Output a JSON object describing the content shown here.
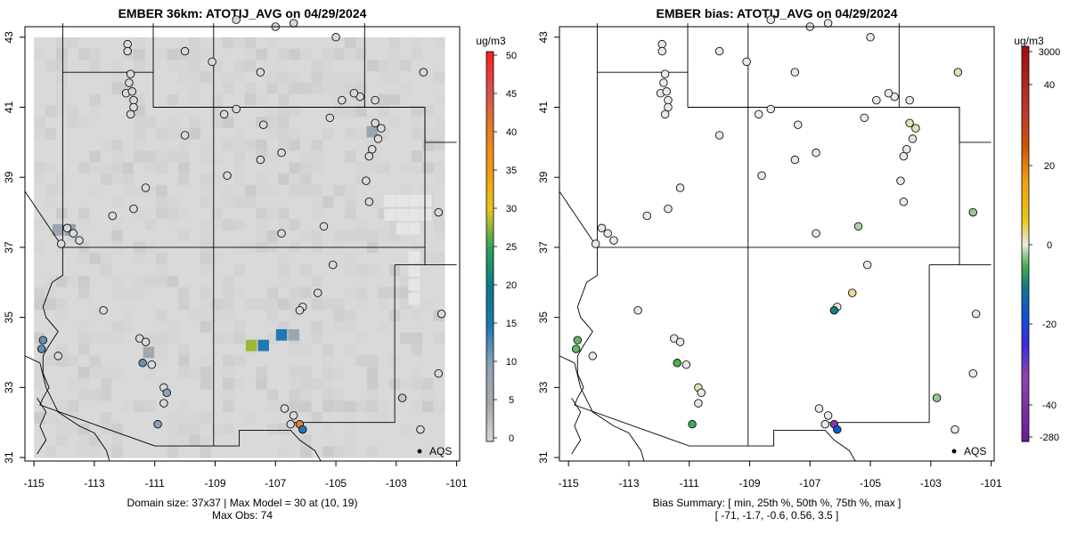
{
  "panels": [
    {
      "title": "EMBER 36km: ATOTIJ_AVG on 04/29/2024",
      "colorbar_unit": "ug/m3",
      "colorbar_ticks": [
        "50",
        "45",
        "40",
        "35",
        "30",
        "25",
        "20",
        "15",
        "10",
        "5",
        "0"
      ],
      "legend_label": "AQS",
      "subtitle_line1": "Domain size: 37x37 | Max Model = 30 at (10, 19)",
      "subtitle_line2": "Max Obs: 74"
    },
    {
      "title": "EMBER bias: ATOTIJ_AVG on 04/29/2024",
      "colorbar_unit": "ug/m3",
      "colorbar_ticks": [
        "3000",
        "40",
        "20",
        "0",
        "-20",
        "-40",
        "-280"
      ],
      "legend_label": "AQS",
      "subtitle_line1": "Bias Summary: [ min, 25th %, 50th %, 75th %, max ]",
      "subtitle_line2": "[ -71,   -1.7,   -0.6,   0.56,   3.5 ]"
    }
  ],
  "chart_data": [
    {
      "type": "heatmap",
      "title": "EMBER 36km: ATOTIJ_AVG on 04/29/2024",
      "x_ticks": [
        "-115",
        "-113",
        "-111",
        "-109",
        "-107",
        "-105",
        "-103",
        "-101"
      ],
      "y_ticks": [
        "31",
        "33",
        "35",
        "37",
        "39",
        "41",
        "43"
      ],
      "xlim": [
        -115.3,
        -100.9
      ],
      "ylim": [
        30.9,
        43.3
      ],
      "colorbar": {
        "unit": "ug/m3",
        "range": [
          0,
          50
        ]
      },
      "domain_size": "37x37",
      "max_model": 30,
      "max_model_cell": [
        10,
        19
      ],
      "max_obs": 74,
      "highlighted_cells": [
        {
          "lon": -107.8,
          "lat": 34.2,
          "value": 28
        },
        {
          "lon": -107.4,
          "lat": 34.2,
          "value": 15
        },
        {
          "lon": -106.8,
          "lat": 34.5,
          "value": 15
        },
        {
          "lon": -106.4,
          "lat": 34.5,
          "value": 8
        },
        {
          "lon": -113.8,
          "lat": 37.5,
          "value": 10
        },
        {
          "lon": -114.2,
          "lat": 37.5,
          "value": 8
        },
        {
          "lon": -103.8,
          "lat": 40.3,
          "value": 8
        },
        {
          "lon": -111.2,
          "lat": 34.0,
          "value": 6
        }
      ]
    },
    {
      "type": "scatter",
      "title": "EMBER bias: ATOTIJ_AVG on 04/29/2024",
      "x_ticks": [
        "-115",
        "-113",
        "-111",
        "-109",
        "-107",
        "-105",
        "-103",
        "-101"
      ],
      "y_ticks": [
        "31",
        "33",
        "35",
        "37",
        "39",
        "41",
        "43"
      ],
      "xlim": [
        -115.3,
        -100.9
      ],
      "ylim": [
        30.9,
        43.3
      ],
      "colorbar": {
        "unit": "ug/m3",
        "ticks": [
          3000,
          40,
          20,
          0,
          -20,
          -40,
          -280
        ]
      },
      "bias_summary": {
        "min": -71,
        "p25": -1.7,
        "p50": -0.6,
        "p75": 0.56,
        "max": 3.5
      }
    }
  ],
  "sites": [
    {
      "lon": -111.9,
      "lat": 42.8,
      "obs": 0,
      "bias": 0
    },
    {
      "lon": -111.9,
      "lat": 42.6,
      "obs": 0,
      "bias": 0
    },
    {
      "lon": -111.8,
      "lat": 41.95,
      "obs": 0,
      "bias": 0
    },
    {
      "lon": -111.85,
      "lat": 41.7,
      "obs": 0,
      "bias": 0
    },
    {
      "lon": -111.95,
      "lat": 41.4,
      "obs": 0,
      "bias": 0
    },
    {
      "lon": -111.75,
      "lat": 41.45,
      "obs": 0,
      "bias": 0
    },
    {
      "lon": -111.7,
      "lat": 41.2,
      "obs": 0,
      "bias": 0
    },
    {
      "lon": -111.7,
      "lat": 41.0,
      "obs": 0,
      "bias": 0
    },
    {
      "lon": -111.8,
      "lat": 40.8,
      "obs": 0,
      "bias": 0
    },
    {
      "lon": -110.0,
      "lat": 42.6,
      "obs": 0,
      "bias": 0
    },
    {
      "lon": -109.1,
      "lat": 42.3,
      "obs": 0,
      "bias": 0
    },
    {
      "lon": -108.3,
      "lat": 43.5,
      "obs": 0,
      "bias": 0
    },
    {
      "lon": -107.0,
      "lat": 43.3,
      "obs": 0,
      "bias": 0
    },
    {
      "lon": -106.4,
      "lat": 43.4,
      "obs": 0,
      "bias": 0
    },
    {
      "lon": -105.0,
      "lat": 43.0,
      "obs": 0,
      "bias": 0
    },
    {
      "lon": -107.5,
      "lat": 42.0,
      "obs": 0,
      "bias": 0
    },
    {
      "lon": -108.7,
      "lat": 40.8,
      "obs": 0,
      "bias": 0
    },
    {
      "lon": -108.3,
      "lat": 40.95,
      "obs": 0,
      "bias": 0
    },
    {
      "lon": -107.4,
      "lat": 40.5,
      "obs": 0,
      "bias": 0
    },
    {
      "lon": -110.0,
      "lat": 40.2,
      "obs": 0,
      "bias": 0
    },
    {
      "lon": -107.5,
      "lat": 39.5,
      "obs": 0,
      "bias": 0
    },
    {
      "lon": -106.8,
      "lat": 39.7,
      "obs": 0,
      "bias": 0
    },
    {
      "lon": -108.6,
      "lat": 39.05,
      "obs": 0,
      "bias": 0
    },
    {
      "lon": -105.2,
      "lat": 40.7,
      "obs": 0,
      "bias": 0
    },
    {
      "lon": -104.8,
      "lat": 41.2,
      "obs": 0,
      "bias": 0
    },
    {
      "lon": -104.2,
      "lat": 41.3,
      "obs": 0,
      "bias": 0
    },
    {
      "lon": -103.7,
      "lat": 41.2,
      "obs": 0,
      "bias": 0
    },
    {
      "lon": -104.4,
      "lat": 41.4,
      "obs": 0,
      "bias": 0
    },
    {
      "lon": -103.7,
      "lat": 40.55,
      "obs": 0,
      "bias": 2
    },
    {
      "lon": -103.5,
      "lat": 40.4,
      "obs": 0,
      "bias": 2
    },
    {
      "lon": -103.6,
      "lat": 40.1,
      "obs": 0,
      "bias": 1
    },
    {
      "lon": -103.8,
      "lat": 39.8,
      "obs": 0,
      "bias": 0
    },
    {
      "lon": -103.9,
      "lat": 39.6,
      "obs": 0,
      "bias": 0
    },
    {
      "lon": -104.0,
      "lat": 38.9,
      "obs": 0,
      "bias": 0
    },
    {
      "lon": -103.9,
      "lat": 38.3,
      "obs": 0,
      "bias": 0
    },
    {
      "lon": -102.1,
      "lat": 42.0,
      "obs": 0,
      "bias": 2
    },
    {
      "lon": -101.6,
      "lat": 38.0,
      "obs": 0,
      "bias": -3
    },
    {
      "lon": -105.4,
      "lat": 37.6,
      "obs": 0,
      "bias": -2
    },
    {
      "lon": -106.8,
      "lat": 37.4,
      "obs": 0,
      "bias": 0
    },
    {
      "lon": -105.1,
      "lat": 36.5,
      "obs": 0,
      "bias": 0
    },
    {
      "lon": -105.6,
      "lat": 35.7,
      "obs": 0,
      "bias": 3
    },
    {
      "lon": -106.1,
      "lat": 35.3,
      "obs": 0,
      "bias": 0
    },
    {
      "lon": -106.2,
      "lat": 35.2,
      "obs": 0,
      "bias": -12
    },
    {
      "lon": -101.5,
      "lat": 35.1,
      "obs": 0,
      "bias": 0
    },
    {
      "lon": -101.6,
      "lat": 33.4,
      "obs": 0,
      "bias": 0
    },
    {
      "lon": -102.8,
      "lat": 32.7,
      "obs": 2,
      "bias": -3
    },
    {
      "lon": -102.2,
      "lat": 31.8,
      "obs": 0,
      "bias": 0
    },
    {
      "lon": -106.7,
      "lat": 32.4,
      "obs": 0,
      "bias": 0
    },
    {
      "lon": -106.4,
      "lat": 32.2,
      "obs": 0,
      "bias": 0
    },
    {
      "lon": -106.5,
      "lat": 31.95,
      "obs": 0,
      "bias": 0
    },
    {
      "lon": -106.2,
      "lat": 31.95,
      "obs": 40,
      "bias": -45
    },
    {
      "lon": -106.1,
      "lat": 31.8,
      "obs": 15,
      "bias": -20
    },
    {
      "lon": -112.4,
      "lat": 37.9,
      "obs": 0,
      "bias": 0
    },
    {
      "lon": -111.7,
      "lat": 38.1,
      "obs": 0,
      "bias": 0
    },
    {
      "lon": -111.3,
      "lat": 38.7,
      "obs": 0,
      "bias": 0
    },
    {
      "lon": -113.9,
      "lat": 37.55,
      "obs": 0,
      "bias": 0
    },
    {
      "lon": -113.7,
      "lat": 37.4,
      "obs": 0,
      "bias": 0
    },
    {
      "lon": -113.5,
      "lat": 37.2,
      "obs": 0,
      "bias": 0
    },
    {
      "lon": -114.1,
      "lat": 37.1,
      "obs": 0,
      "bias": 0
    },
    {
      "lon": -112.7,
      "lat": 35.2,
      "obs": 0,
      "bias": 0
    },
    {
      "lon": -114.7,
      "lat": 34.35,
      "obs": 12,
      "bias": -5
    },
    {
      "lon": -114.75,
      "lat": 34.1,
      "obs": 12,
      "bias": -5
    },
    {
      "lon": -114.2,
      "lat": 33.9,
      "obs": 0,
      "bias": 0
    },
    {
      "lon": -111.5,
      "lat": 34.4,
      "obs": 0,
      "bias": 0
    },
    {
      "lon": -111.3,
      "lat": 34.3,
      "obs": 0,
      "bias": 0
    },
    {
      "lon": -111.4,
      "lat": 33.7,
      "obs": 12,
      "bias": -6
    },
    {
      "lon": -111.1,
      "lat": 33.65,
      "obs": 0,
      "bias": 0
    },
    {
      "lon": -110.7,
      "lat": 33.0,
      "obs": 0,
      "bias": 2
    },
    {
      "lon": -110.6,
      "lat": 32.85,
      "obs": 10,
      "bias": 0
    },
    {
      "lon": -110.7,
      "lat": 32.55,
      "obs": 0,
      "bias": 0
    },
    {
      "lon": -110.9,
      "lat": 31.95,
      "obs": 10,
      "bias": -7
    }
  ]
}
